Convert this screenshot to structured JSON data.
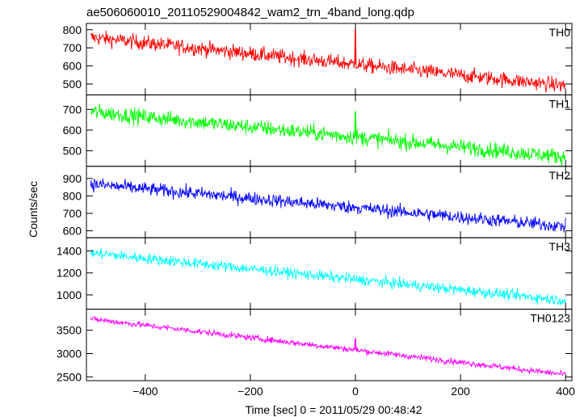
{
  "chart_data": {
    "type": "line",
    "title": "ae506060010_20110529004842_wam2_trn_4band_long.qdp",
    "xlabel": "Time [sec] 0 = 2011/05/29 00:48:42",
    "ylabel": "Counts/sec",
    "xlim": [
      -512,
      412
    ],
    "xticks": [
      -400,
      -200,
      0,
      200,
      400
    ],
    "xtick_labels": [
      "−400",
      "−200",
      "0",
      "200",
      "400"
    ],
    "grid": false,
    "panels": [
      {
        "name": "TH0",
        "color": "#ff0000",
        "ylim": [
          440,
          835
        ],
        "yticks": [
          500,
          600,
          700,
          800
        ],
        "start": 760,
        "end": 490,
        "noise": 38,
        "spike": {
          "x": 0,
          "value": 800
        }
      },
      {
        "name": "TH1",
        "color": "#00ff00",
        "ylim": [
          425,
          770
        ],
        "yticks": [
          500,
          600,
          700
        ],
        "start": 690,
        "end": 470,
        "noise": 35,
        "spike": {
          "x": 0,
          "value": 690
        }
      },
      {
        "name": "TH2",
        "color": "#0000ff",
        "ylim": [
          560,
          970
        ],
        "yticks": [
          600,
          700,
          800,
          900
        ],
        "start": 870,
        "end": 625,
        "noise": 35,
        "spike": {
          "x": 0,
          "value": 740
        }
      },
      {
        "name": "TH3",
        "color": "#00ffff",
        "ylim": [
          870,
          1520
        ],
        "yticks": [
          1000,
          1200,
          1400
        ],
        "start": 1385,
        "end": 950,
        "noise": 45,
        "spike": {
          "x": 0,
          "value": 1130
        }
      },
      {
        "name": "TH0123",
        "color": "#ff00ff",
        "ylim": [
          2420,
          3950
        ],
        "yticks": [
          2500,
          3000,
          3500
        ],
        "start": 3750,
        "end": 2550,
        "noise": 60,
        "spike": {
          "x": 0,
          "value": 3320
        }
      }
    ]
  }
}
